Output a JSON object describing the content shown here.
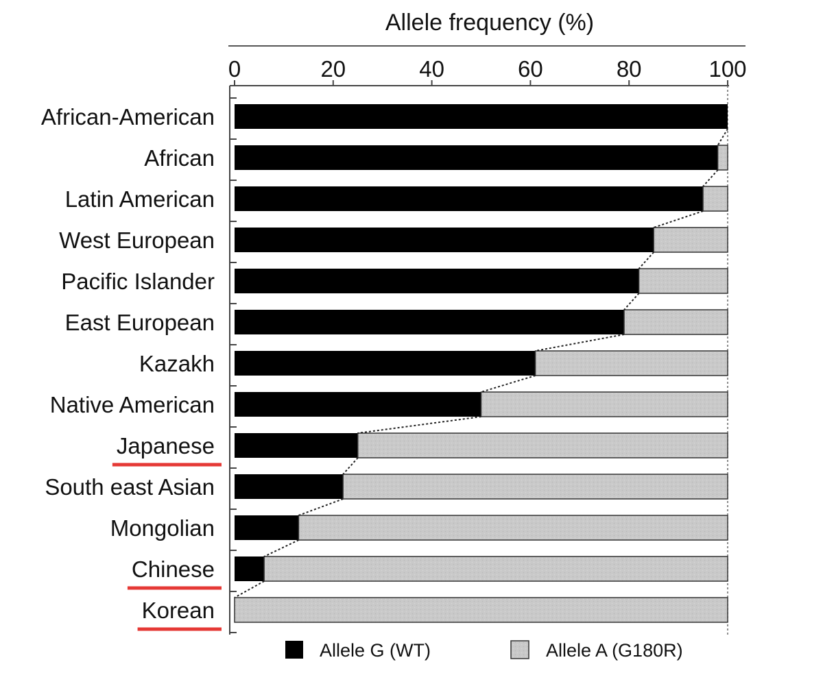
{
  "chart_data": {
    "type": "bar",
    "stacked": true,
    "orientation": "horizontal",
    "title": "Allele frequency (%)",
    "xlim": [
      0,
      100
    ],
    "x_ticks": [
      "0",
      "20",
      "40",
      "60",
      "80",
      "100"
    ],
    "categories": [
      "African-American",
      "African",
      "Latin American",
      "West European",
      "Pacific Islander",
      "East European",
      "Kazakh",
      "Native American",
      "Japanese",
      "South east Asian",
      "Mongolian",
      "Chinese",
      "Korean"
    ],
    "highlighted_categories": [
      "Japanese",
      "Chinese",
      "Korean"
    ],
    "series": [
      {
        "name": "Allele G (WT)",
        "color": "#000000",
        "values": [
          100,
          98,
          95,
          85,
          82,
          79,
          61,
          50,
          25,
          22,
          13,
          6,
          0
        ]
      },
      {
        "name": "Allele A (G180R)",
        "color": "#c8c8c8",
        "values": [
          0,
          2,
          5,
          15,
          18,
          21,
          39,
          50,
          75,
          78,
          87,
          94,
          100
        ]
      }
    ],
    "connector_line": "dotted",
    "legend_position": "bottom",
    "highlight_color": "#e53935",
    "grid": false
  }
}
